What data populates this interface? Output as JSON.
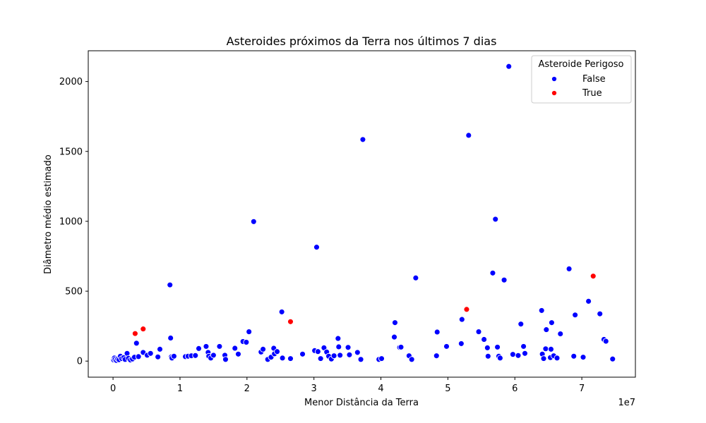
{
  "chart_data": {
    "type": "scatter",
    "title": "Asteroides próximos da Terra nos últimos 7 dias",
    "xlabel": "Menor Distância da Terra",
    "ylabel": "Diâmetro médio estimado",
    "x_offset_label": "1e7",
    "xlim": [
      -3700000,
      78000000
    ],
    "ylim": [
      -115,
      2220
    ],
    "x_ticks": [
      0,
      10000000,
      20000000,
      30000000,
      40000000,
      50000000,
      60000000,
      70000000
    ],
    "x_tick_labels": [
      "0",
      "1",
      "2",
      "3",
      "4",
      "5",
      "6",
      "7"
    ],
    "y_ticks": [
      0,
      500,
      1000,
      1500,
      2000
    ],
    "y_tick_labels": [
      "0",
      "500",
      "1000",
      "1500",
      "2000"
    ],
    "grid": false,
    "legend": {
      "title": "Asteroide Perigoso",
      "placement": "top-right",
      "entries": [
        {
          "label": "False",
          "color": "#0000ff"
        },
        {
          "label": "True",
          "color": "#ff0000"
        }
      ]
    },
    "series": [
      {
        "name": "False",
        "color": "#0000ff",
        "points": [
          [
            100000,
            8
          ],
          [
            200000,
            22
          ],
          [
            300000,
            12
          ],
          [
            500000,
            5
          ],
          [
            700000,
            15
          ],
          [
            900000,
            10
          ],
          [
            1100000,
            35
          ],
          [
            1300000,
            18
          ],
          [
            1600000,
            25
          ],
          [
            1800000,
            12
          ],
          [
            2100000,
            55
          ],
          [
            2300000,
            20
          ],
          [
            2600000,
            8
          ],
          [
            2900000,
            15
          ],
          [
            3200000,
            28
          ],
          [
            3500000,
            128
          ],
          [
            3800000,
            32
          ],
          [
            4500000,
            62
          ],
          [
            5100000,
            42
          ],
          [
            5600000,
            55
          ],
          [
            6700000,
            30
          ],
          [
            7000000,
            85
          ],
          [
            8500000,
            545
          ],
          [
            8600000,
            165
          ],
          [
            8700000,
            30
          ],
          [
            8800000,
            22
          ],
          [
            9100000,
            35
          ],
          [
            10800000,
            32
          ],
          [
            11200000,
            35
          ],
          [
            11700000,
            38
          ],
          [
            12300000,
            40
          ],
          [
            12800000,
            90
          ],
          [
            13900000,
            105
          ],
          [
            14200000,
            62
          ],
          [
            14300000,
            35
          ],
          [
            14600000,
            22
          ],
          [
            15000000,
            42
          ],
          [
            15900000,
            105
          ],
          [
            16700000,
            42
          ],
          [
            16800000,
            12
          ],
          [
            18200000,
            92
          ],
          [
            18700000,
            50
          ],
          [
            19400000,
            140
          ],
          [
            19900000,
            135
          ],
          [
            20300000,
            210
          ],
          [
            21000000,
            998
          ],
          [
            22100000,
            65
          ],
          [
            22400000,
            85
          ],
          [
            23100000,
            12
          ],
          [
            23600000,
            28
          ],
          [
            24000000,
            92
          ],
          [
            24100000,
            52
          ],
          [
            24500000,
            68
          ],
          [
            25200000,
            352
          ],
          [
            25300000,
            22
          ],
          [
            26500000,
            18
          ],
          [
            28300000,
            50
          ],
          [
            30100000,
            75
          ],
          [
            30400000,
            815
          ],
          [
            30600000,
            68
          ],
          [
            31000000,
            18
          ],
          [
            31500000,
            95
          ],
          [
            31900000,
            65
          ],
          [
            32200000,
            35
          ],
          [
            32600000,
            15
          ],
          [
            33000000,
            38
          ],
          [
            33600000,
            162
          ],
          [
            33700000,
            102
          ],
          [
            33900000,
            42
          ],
          [
            35100000,
            98
          ],
          [
            35300000,
            45
          ],
          [
            36500000,
            62
          ],
          [
            37000000,
            12
          ],
          [
            37300000,
            1585
          ],
          [
            39700000,
            12
          ],
          [
            40100000,
            18
          ],
          [
            42000000,
            172
          ],
          [
            42100000,
            275
          ],
          [
            42800000,
            98
          ],
          [
            43000000,
            100
          ],
          [
            44200000,
            38
          ],
          [
            44600000,
            12
          ],
          [
            45200000,
            595
          ],
          [
            48300000,
            38
          ],
          [
            48400000,
            208
          ],
          [
            49800000,
            105
          ],
          [
            52000000,
            125
          ],
          [
            52100000,
            298
          ],
          [
            53100000,
            1615
          ],
          [
            54600000,
            210
          ],
          [
            55400000,
            155
          ],
          [
            55900000,
            95
          ],
          [
            56000000,
            35
          ],
          [
            56700000,
            630
          ],
          [
            57100000,
            1015
          ],
          [
            57400000,
            100
          ],
          [
            57600000,
            35
          ],
          [
            57800000,
            22
          ],
          [
            58400000,
            580
          ],
          [
            59100000,
            2108
          ],
          [
            59700000,
            48
          ],
          [
            60500000,
            40
          ],
          [
            60900000,
            265
          ],
          [
            61300000,
            105
          ],
          [
            61500000,
            55
          ],
          [
            64000000,
            362
          ],
          [
            64100000,
            50
          ],
          [
            64300000,
            18
          ],
          [
            64600000,
            88
          ],
          [
            64700000,
            225
          ],
          [
            65300000,
            25
          ],
          [
            65400000,
            85
          ],
          [
            65500000,
            275
          ],
          [
            65800000,
            38
          ],
          [
            66300000,
            22
          ],
          [
            66800000,
            195
          ],
          [
            68100000,
            660
          ],
          [
            68800000,
            35
          ],
          [
            69000000,
            330
          ],
          [
            70200000,
            28
          ],
          [
            71000000,
            428
          ],
          [
            72700000,
            338
          ],
          [
            73300000,
            155
          ],
          [
            73600000,
            142
          ],
          [
            74600000,
            15
          ]
        ]
      },
      {
        "name": "True",
        "color": "#ff0000",
        "points": [
          [
            3300000,
            197
          ],
          [
            4500000,
            230
          ],
          [
            26500000,
            282
          ],
          [
            52800000,
            370
          ],
          [
            71700000,
            608
          ]
        ]
      }
    ]
  }
}
